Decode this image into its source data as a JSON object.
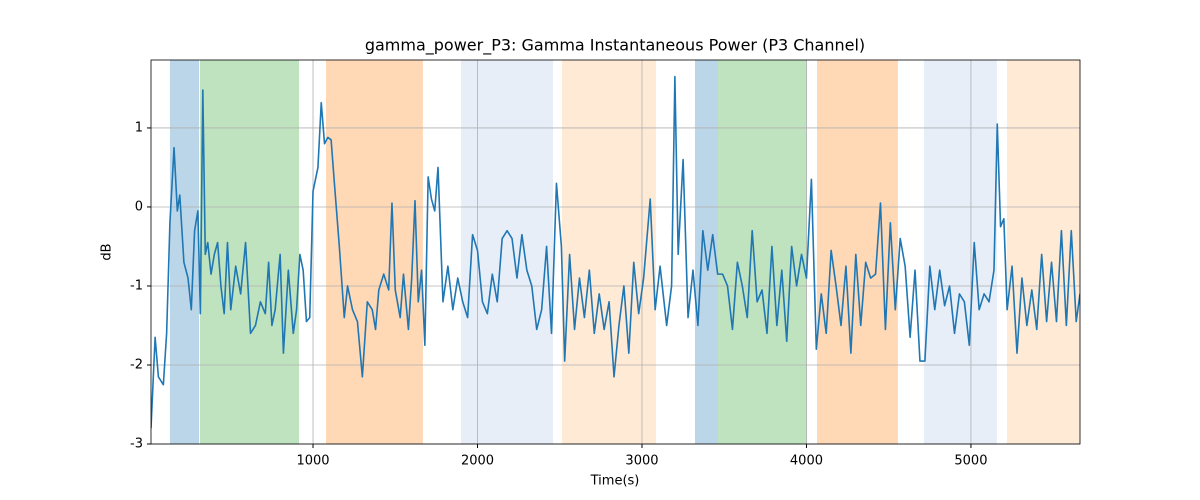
{
  "chart_data": {
    "type": "line",
    "title": "gamma_power_P3: Gamma Instantaneous Power (P3 Channel)",
    "xlabel": "Time(s)",
    "ylabel": "dB",
    "xlim": [
      15,
      5663
    ],
    "ylim": [
      -3,
      1.86
    ],
    "xticks": [
      1000,
      2000,
      3000,
      4000,
      5000
    ],
    "yticks": [
      -3,
      -2,
      -1,
      0,
      1
    ],
    "grid": true,
    "spans": [
      {
        "start": 130,
        "end": 307,
        "color": "#1f77b4",
        "opacity": 0.3
      },
      {
        "start": 313,
        "end": 915,
        "color": "#2ca02c",
        "opacity": 0.3
      },
      {
        "start": 1079,
        "end": 1668,
        "color": "#ff7f0e",
        "opacity": 0.3
      },
      {
        "start": 1900,
        "end": 2459,
        "color": "#aec7e8",
        "opacity": 0.3
      },
      {
        "start": 2513,
        "end": 3085,
        "color": "#ffbb78",
        "opacity": 0.3
      },
      {
        "start": 3322,
        "end": 3462,
        "color": "#1f77b4",
        "opacity": 0.3
      },
      {
        "start": 3462,
        "end": 4003,
        "color": "#2ca02c",
        "opacity": 0.3
      },
      {
        "start": 4064,
        "end": 4556,
        "color": "#ff7f0e",
        "opacity": 0.3
      },
      {
        "start": 4714,
        "end": 5158,
        "color": "#aec7e8",
        "opacity": 0.3
      },
      {
        "start": 5219,
        "end": 5663,
        "color": "#ffbb78",
        "opacity": 0.3
      }
    ],
    "x": [
      15,
      40,
      60,
      90,
      110,
      130,
      155,
      175,
      190,
      215,
      240,
      260,
      280,
      300,
      315,
      330,
      345,
      360,
      380,
      400,
      420,
      440,
      460,
      480,
      500,
      530,
      560,
      590,
      620,
      650,
      680,
      710,
      730,
      750,
      770,
      800,
      820,
      850,
      880,
      900,
      920,
      940,
      960,
      980,
      1000,
      1030,
      1050,
      1070,
      1090,
      1110,
      1130,
      1160,
      1190,
      1210,
      1240,
      1270,
      1300,
      1330,
      1360,
      1380,
      1400,
      1430,
      1460,
      1480,
      1500,
      1530,
      1550,
      1580,
      1600,
      1620,
      1640,
      1660,
      1680,
      1700,
      1720,
      1740,
      1760,
      1790,
      1820,
      1850,
      1880,
      1910,
      1940,
      1970,
      2000,
      2030,
      2060,
      2090,
      2120,
      2150,
      2180,
      2210,
      2240,
      2270,
      2300,
      2330,
      2360,
      2390,
      2420,
      2450,
      2480,
      2510,
      2530,
      2560,
      2590,
      2620,
      2650,
      2680,
      2710,
      2740,
      2770,
      2800,
      2830,
      2860,
      2890,
      2920,
      2950,
      2980,
      3010,
      3050,
      3080,
      3110,
      3150,
      3180,
      3200,
      3220,
      3250,
      3280,
      3310,
      3340,
      3370,
      3400,
      3430,
      3460,
      3490,
      3520,
      3550,
      3580,
      3610,
      3640,
      3670,
      3700,
      3730,
      3760,
      3790,
      3820,
      3850,
      3880,
      3910,
      3940,
      3970,
      4000,
      4030,
      4060,
      4090,
      4120,
      4150,
      4180,
      4210,
      4240,
      4270,
      4300,
      4330,
      4360,
      4390,
      4420,
      4450,
      4480,
      4510,
      4540,
      4570,
      4600,
      4630,
      4660,
      4690,
      4720,
      4750,
      4780,
      4810,
      4840,
      4870,
      4900,
      4930,
      4960,
      4990,
      5020,
      5050,
      5080,
      5110,
      5140,
      5160,
      5180,
      5200,
      5220,
      5250,
      5280,
      5310,
      5340,
      5370,
      5400,
      5430,
      5460,
      5490,
      5520,
      5550,
      5580,
      5610,
      5640,
      5663
    ],
    "series": [
      {
        "color": "#1f77b4",
        "values": [
          -2.8,
          -1.65,
          -2.15,
          -2.25,
          -1.6,
          -0.2,
          0.75,
          -0.05,
          0.15,
          -0.7,
          -0.9,
          -1.3,
          -0.3,
          -0.05,
          -1.35,
          1.48,
          -0.6,
          -0.45,
          -0.85,
          -0.6,
          -0.45,
          -1.0,
          -1.35,
          -0.45,
          -1.3,
          -0.75,
          -1.1,
          -0.45,
          -1.6,
          -1.5,
          -1.2,
          -1.35,
          -0.7,
          -1.5,
          -1.3,
          -0.6,
          -1.85,
          -0.8,
          -1.6,
          -1.3,
          -0.6,
          -0.8,
          -1.45,
          -1.4,
          0.2,
          0.5,
          1.32,
          0.8,
          0.88,
          0.85,
          0.3,
          -0.5,
          -1.4,
          -1.0,
          -1.3,
          -1.45,
          -2.15,
          -1.2,
          -1.3,
          -1.55,
          -1.05,
          -0.85,
          -1.05,
          0.05,
          -1.05,
          -1.4,
          -0.85,
          -1.55,
          -0.9,
          0.08,
          -1.2,
          -0.8,
          -1.75,
          0.38,
          0.1,
          -0.05,
          0.5,
          -1.2,
          -0.75,
          -1.3,
          -0.9,
          -1.2,
          -1.4,
          -0.35,
          -0.55,
          -1.2,
          -1.35,
          -0.85,
          -1.2,
          -0.4,
          -0.3,
          -0.4,
          -0.9,
          -0.35,
          -0.8,
          -1.0,
          -1.55,
          -1.3,
          -0.5,
          -1.6,
          0.3,
          -0.5,
          -1.95,
          -0.6,
          -1.55,
          -0.9,
          -1.4,
          -0.8,
          -1.6,
          -1.1,
          -1.55,
          -1.2,
          -2.15,
          -1.5,
          -1.0,
          -1.85,
          -0.7,
          -1.35,
          -0.9,
          0.1,
          -1.3,
          -0.75,
          -1.5,
          -1.0,
          1.65,
          -0.6,
          0.6,
          -1.4,
          -0.8,
          -1.5,
          -0.3,
          -0.8,
          -0.35,
          -0.85,
          -0.85,
          -1.0,
          -1.55,
          -0.7,
          -1.0,
          -1.4,
          -0.3,
          -1.2,
          -1.05,
          -1.6,
          -0.5,
          -1.5,
          -0.8,
          -1.7,
          -0.5,
          -1.0,
          -0.6,
          -0.9,
          0.35,
          -1.8,
          -1.1,
          -1.6,
          -0.55,
          -1.0,
          -1.5,
          -0.75,
          -1.85,
          -0.6,
          -1.5,
          -0.7,
          -0.9,
          -0.85,
          0.05,
          -1.55,
          -0.2,
          -1.3,
          -0.4,
          -0.75,
          -1.65,
          -0.8,
          -1.95,
          -1.95,
          -0.75,
          -1.3,
          -0.8,
          -1.25,
          -1.0,
          -1.6,
          -1.1,
          -1.2,
          -1.75,
          -0.45,
          -1.3,
          -1.1,
          -1.2,
          -0.8,
          1.05,
          -0.25,
          -0.15,
          -1.3,
          -0.75,
          -1.85,
          -0.9,
          -1.5,
          -1.05,
          -1.55,
          -0.6,
          -1.45,
          -0.7,
          -1.45,
          -0.3,
          -1.5,
          -0.3,
          -1.45,
          -1.1
        ]
      }
    ]
  }
}
